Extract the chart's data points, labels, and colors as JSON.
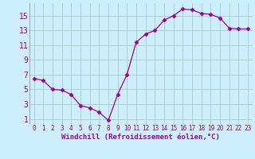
{
  "x": [
    0,
    1,
    2,
    3,
    4,
    5,
    6,
    7,
    8,
    9,
    10,
    11,
    12,
    13,
    14,
    15,
    16,
    17,
    18,
    19,
    20,
    21,
    22,
    23
  ],
  "y": [
    6.5,
    6.2,
    5.0,
    4.9,
    4.3,
    2.8,
    2.5,
    1.9,
    0.8,
    4.3,
    7.0,
    11.4,
    12.5,
    13.0,
    14.4,
    15.0,
    15.9,
    15.8,
    15.3,
    15.2,
    14.7,
    13.3,
    13.2,
    13.2
  ],
  "xlabel": "Windchill (Refroidissement éolien,°C)",
  "xticks": [
    0,
    1,
    2,
    3,
    4,
    5,
    6,
    7,
    8,
    9,
    10,
    11,
    12,
    13,
    14,
    15,
    16,
    17,
    18,
    19,
    20,
    21,
    22,
    23
  ],
  "xtick_labels": [
    "0",
    "1",
    "2",
    "3",
    "4",
    "5",
    "6",
    "7",
    "8",
    "9",
    "10",
    "11",
    "12",
    "13",
    "14",
    "15",
    "16",
    "17",
    "18",
    "19",
    "20",
    "21",
    "22",
    "23"
  ],
  "yticks": [
    1,
    3,
    5,
    7,
    9,
    11,
    13,
    15
  ],
  "ylim": [
    0.3,
    16.7
  ],
  "xlim": [
    -0.5,
    23.5
  ],
  "line_color": "#990099",
  "marker": "D",
  "markersize": 2.5,
  "bg_color": "#cceeff",
  "grid_color": "#aaccbb",
  "xlabel_color": "#990099",
  "xlabel_fontsize": 6.5,
  "ytick_fontsize": 7,
  "xtick_fontsize": 5.5
}
